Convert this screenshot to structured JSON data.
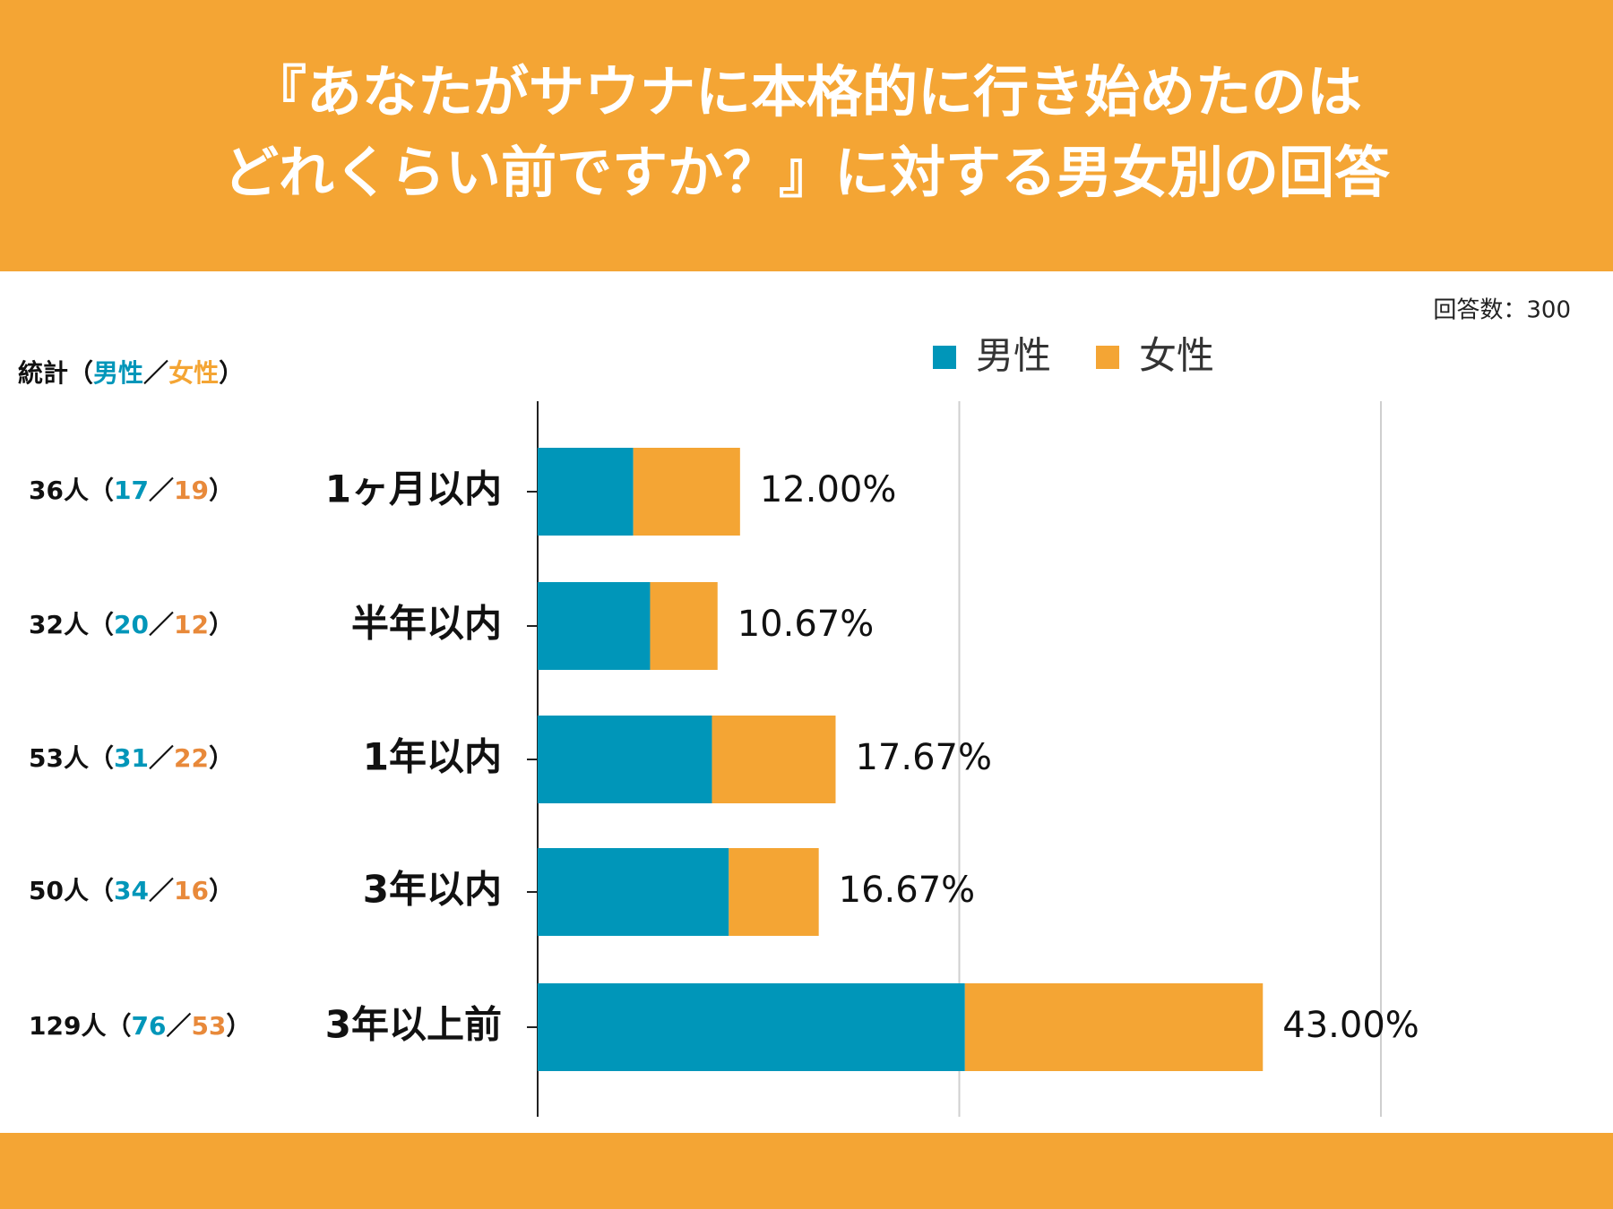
{
  "chart_data": {
    "type": "stacked_barh",
    "title": [
      "『あなたがサウナに本格的に行き始めたのは",
      "どれくらい前ですか？』に対する男女別の回答"
    ],
    "note": "回答数：300",
    "stats_header": "統計",
    "open": "（",
    "sep": "／",
    "close": "）",
    "categories": [
      "1ヶ月以内",
      "半年以内",
      "1年以内",
      "3年以内",
      "3年以上前"
    ],
    "series": [
      {
        "name": "男性",
        "color": "#0096b9",
        "values": [
          17,
          20,
          31,
          34,
          76
        ]
      },
      {
        "name": "女性",
        "color": "#f4a534",
        "values": [
          19,
          12,
          22,
          16,
          53
        ]
      }
    ],
    "totals": [
      36,
      32,
      53,
      50,
      129
    ],
    "total_labels": [
      "36人",
      "32人",
      "53人",
      "50人",
      "129人"
    ],
    "percents": [
      12.0,
      10.67,
      17.67,
      16.67,
      43.0
    ],
    "percent_labels": [
      "12.00%",
      "10.67%",
      "17.67%",
      "16.67%",
      "43.00%"
    ],
    "xlim": [
      0,
      150
    ],
    "xticks": [
      0,
      75,
      150
    ],
    "grid": true,
    "legend": "top"
  }
}
